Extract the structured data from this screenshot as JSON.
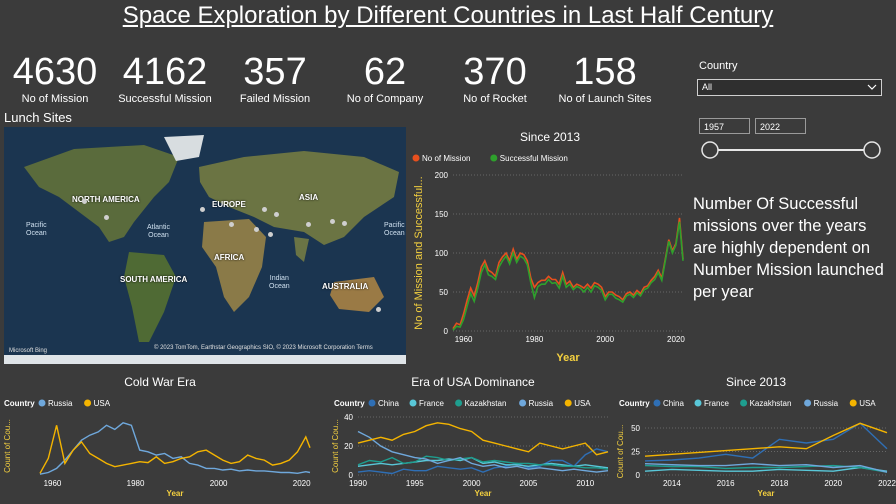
{
  "title": "Space Exploration by Different Countries in Last Half Century",
  "kpis": [
    {
      "value": "4630",
      "label": "No of Mission"
    },
    {
      "value": "4162",
      "label": "Successful Mission"
    },
    {
      "value": "357",
      "label": "Failed Mission"
    },
    {
      "value": "62",
      "label": "No of Company"
    },
    {
      "value": "370",
      "label": "No of Rocket"
    },
    {
      "value": "158",
      "label": "No of Launch Sites"
    }
  ],
  "map": {
    "section_label": "Lunch Sites",
    "continents": [
      "NORTH AMERICA",
      "SOUTH AMERICA",
      "EUROPE",
      "AFRICA",
      "ASIA",
      "AUSTRALIA"
    ],
    "oceans": {
      "pacific_left": "Pacific\nOcean",
      "atlantic": "Atlantic\nOcean",
      "indian": "Indian\nOcean",
      "pacific_right": "Pacific\nOcean"
    },
    "attribution": "© 2023 TomTom, Earthstar Geographics SIO, © 2023 Microsoft Corporation  Terms",
    "brand": "Microsoft Bing"
  },
  "slicer": {
    "label": "Country",
    "value": "All",
    "from": "1957",
    "to": "2022",
    "range_fraction": [
      0,
      1
    ]
  },
  "insight": "Number Of Successful missions over the years are highly dependent on Number Mission launched per year",
  "colors": {
    "mission": "#e8501e",
    "success": "#2ea02c",
    "russia": "#6fa8dc",
    "usa": "#f4b400",
    "china": "#2f6fb5",
    "france": "#59c7d8",
    "kazakhstan": "#1e9e8f"
  },
  "chart_data": [
    {
      "id": "main",
      "type": "line",
      "title": "Since 2013",
      "xlabel": "Year",
      "ylabel": "No of Mission and Successful...",
      "xticks": [
        1960,
        1980,
        2000,
        2020
      ],
      "yticks": [
        0,
        50,
        100,
        150,
        200
      ],
      "xlim": [
        1957,
        2022
      ],
      "ylim": [
        0,
        200
      ],
      "x": [
        1957,
        1958,
        1959,
        1960,
        1961,
        1962,
        1963,
        1964,
        1965,
        1966,
        1967,
        1968,
        1969,
        1970,
        1971,
        1972,
        1973,
        1974,
        1975,
        1976,
        1977,
        1978,
        1979,
        1980,
        1981,
        1982,
        1983,
        1984,
        1985,
        1986,
        1987,
        1988,
        1989,
        1990,
        1991,
        1992,
        1993,
        1994,
        1995,
        1996,
        1997,
        1998,
        1999,
        2000,
        2001,
        2002,
        2003,
        2004,
        2005,
        2006,
        2007,
        2008,
        2009,
        2010,
        2011,
        2012,
        2013,
        2014,
        2015,
        2016,
        2017,
        2018,
        2019,
        2020,
        2021,
        2022
      ],
      "series": [
        {
          "name": "No of Mission",
          "color": "#e8501e",
          "values": [
            3,
            10,
            8,
            22,
            40,
            55,
            45,
            62,
            82,
            90,
            78,
            75,
            70,
            88,
            95,
            100,
            90,
            105,
            92,
            100,
            98,
            90,
            68,
            56,
            62,
            65,
            65,
            70,
            66,
            66,
            60,
            75,
            60,
            64,
            56,
            60,
            58,
            55,
            60,
            55,
            62,
            60,
            56,
            44,
            50,
            50,
            46,
            44,
            40,
            48,
            50,
            46,
            52,
            48,
            56,
            58,
            65,
            70,
            78,
            68,
            92,
            117,
            103,
            112,
            145,
            92
          ]
        },
        {
          "name": "Successful Mission",
          "color": "#2ea02c",
          "values": [
            1,
            6,
            5,
            15,
            32,
            48,
            38,
            55,
            75,
            85,
            72,
            70,
            66,
            82,
            90,
            96,
            86,
            100,
            88,
            96,
            93,
            85,
            62,
            43,
            57,
            60,
            60,
            66,
            61,
            62,
            55,
            70,
            56,
            60,
            53,
            57,
            55,
            50,
            56,
            50,
            58,
            56,
            52,
            40,
            47,
            47,
            42,
            40,
            37,
            45,
            47,
            43,
            49,
            45,
            53,
            55,
            62,
            66,
            75,
            65,
            90,
            115,
            100,
            110,
            140,
            90
          ]
        }
      ]
    },
    {
      "id": "cold",
      "type": "line",
      "title": "Cold War Era",
      "legend_label": "Country",
      "xlabel": "Year",
      "ylabel": "Count of Cou...",
      "xticks": [
        1960,
        1980,
        2000,
        2020
      ],
      "xlim": [
        1957,
        2022
      ],
      "ylim": [
        0,
        70
      ],
      "x": [
        1957,
        1959,
        1961,
        1963,
        1965,
        1967,
        1969,
        1971,
        1973,
        1975,
        1977,
        1979,
        1981,
        1983,
        1985,
        1987,
        1989,
        1991,
        1993,
        1995,
        1997,
        1999,
        2001,
        2003,
        2005,
        2007,
        2009,
        2011,
        2013,
        2015,
        2017,
        2019,
        2021,
        2022
      ],
      "series": [
        {
          "name": "Russia",
          "color": "#6fa8dc",
          "values": [
            1,
            3,
            8,
            18,
            30,
            42,
            48,
            52,
            60,
            55,
            63,
            60,
            30,
            28,
            24,
            26,
            20,
            22,
            14,
            12,
            8,
            8,
            6,
            7,
            5,
            6,
            5,
            5,
            4,
            3,
            3,
            2,
            4,
            3
          ]
        },
        {
          "name": "USA",
          "color": "#f4b400",
          "values": [
            2,
            20,
            60,
            14,
            30,
            40,
            26,
            20,
            14,
            10,
            12,
            14,
            16,
            15,
            22,
            14,
            16,
            20,
            22,
            28,
            30,
            24,
            18,
            14,
            16,
            24,
            20,
            18,
            12,
            14,
            18,
            28,
            46,
            33
          ]
        }
      ]
    },
    {
      "id": "usa",
      "type": "line",
      "title": "Era of USA Dominance",
      "legend_label": "Country",
      "xlabel": "Year",
      "ylabel": "Count of Cou...",
      "xticks": [
        1990,
        1995,
        2000,
        2005,
        2010
      ],
      "yticks": [
        0,
        20,
        40
      ],
      "xlim": [
        1990,
        2012
      ],
      "ylim": [
        0,
        40
      ],
      "x": [
        1990,
        1991,
        1992,
        1993,
        1994,
        1995,
        1996,
        1997,
        1998,
        1999,
        2000,
        2001,
        2002,
        2003,
        2004,
        2005,
        2006,
        2007,
        2008,
        2009,
        2010,
        2011,
        2012
      ],
      "series": [
        {
          "name": "China",
          "color": "#2f6fb5",
          "values": [
            2,
            3,
            2,
            1,
            4,
            3,
            3,
            6,
            5,
            4,
            5,
            2,
            5,
            6,
            8,
            5,
            6,
            10,
            10,
            6,
            14,
            18,
            16
          ]
        },
        {
          "name": "France",
          "color": "#59c7d8",
          "values": [
            6,
            7,
            8,
            7,
            8,
            9,
            10,
            10,
            11,
            10,
            12,
            8,
            9,
            7,
            7,
            6,
            7,
            8,
            7,
            6,
            7,
            6,
            5
          ]
        },
        {
          "name": "Kazakhstan",
          "color": "#1e9e8f",
          "values": [
            7,
            10,
            9,
            12,
            8,
            9,
            13,
            12,
            10,
            11,
            12,
            9,
            10,
            9,
            8,
            8,
            7,
            7,
            6,
            6,
            5,
            5,
            4
          ]
        },
        {
          "name": "Russia",
          "color": "#6fa8dc",
          "values": [
            30,
            26,
            20,
            16,
            14,
            12,
            11,
            8,
            10,
            12,
            8,
            6,
            7,
            5,
            6,
            4,
            5,
            4,
            3,
            4,
            3,
            2,
            3
          ]
        },
        {
          "name": "USA",
          "color": "#f4b400",
          "values": [
            22,
            24,
            26,
            24,
            28,
            30,
            34,
            36,
            35,
            32,
            30,
            24,
            22,
            20,
            18,
            16,
            22,
            20,
            18,
            20,
            22,
            14,
            16
          ]
        }
      ]
    },
    {
      "id": "since2013",
      "type": "line",
      "title": "Since 2013",
      "legend_label": "Country",
      "xlabel": "Year",
      "ylabel": "Count of Cou...",
      "xticks": [
        2014,
        2016,
        2018,
        2020,
        2022
      ],
      "yticks": [
        0,
        25,
        50
      ],
      "xlim": [
        2013,
        2022
      ],
      "ylim": [
        0,
        50
      ],
      "x": [
        2013,
        2014,
        2015,
        2016,
        2017,
        2018,
        2019,
        2020,
        2021,
        2022
      ],
      "series": [
        {
          "name": "China",
          "color": "#2f6fb5",
          "values": [
            15,
            16,
            18,
            22,
            18,
            38,
            34,
            38,
            55,
            28
          ]
        },
        {
          "name": "France",
          "color": "#59c7d8",
          "values": [
            4,
            6,
            5,
            4,
            4,
            6,
            5,
            4,
            8,
            4
          ]
        },
        {
          "name": "Kazakhstan",
          "color": "#1e9e8f",
          "values": [
            10,
            9,
            9,
            7,
            8,
            8,
            9,
            10,
            8,
            3
          ]
        },
        {
          "name": "Russia",
          "color": "#6fa8dc",
          "values": [
            12,
            11,
            10,
            10,
            12,
            10,
            11,
            8,
            10,
            3
          ]
        },
        {
          "name": "USA",
          "color": "#f4b400",
          "values": [
            20,
            22,
            24,
            26,
            28,
            30,
            28,
            42,
            55,
            45
          ]
        }
      ]
    }
  ]
}
